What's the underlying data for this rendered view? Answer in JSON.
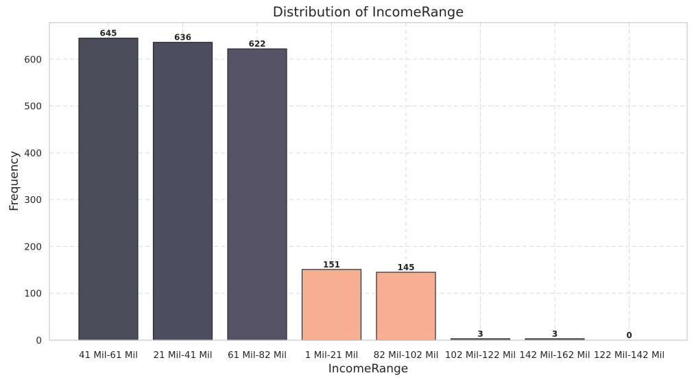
{
  "chart_data": {
    "type": "bar",
    "title": "Distribution of IncomeRange",
    "xlabel": "IncomeRange",
    "ylabel": "Frequency",
    "ylim": [
      0,
      678
    ],
    "yticks": [
      0,
      100,
      200,
      300,
      400,
      500,
      600
    ],
    "grid": true,
    "categories": [
      "41 Mil-61 Mil",
      "21 Mil-41 Mil",
      "61 Mil-82 Mil",
      "1 Mil-21 Mil",
      "82 Mil-102 Mil",
      "102 Mil-122 Mil",
      "142 Mil-162 Mil",
      "122 Mil-142 Mil"
    ],
    "values": [
      645,
      636,
      622,
      151,
      145,
      3,
      3,
      0
    ],
    "value_labels": [
      "645",
      "636",
      "622",
      "151",
      "145",
      "3",
      "3",
      "0"
    ],
    "bar_colors": [
      "#4a4c5a",
      "#4c4e5e",
      "#545264",
      "#f7af93",
      "#f7af93",
      "#5a5c6a",
      "#5a5c6a",
      "#5a5c6a"
    ]
  }
}
